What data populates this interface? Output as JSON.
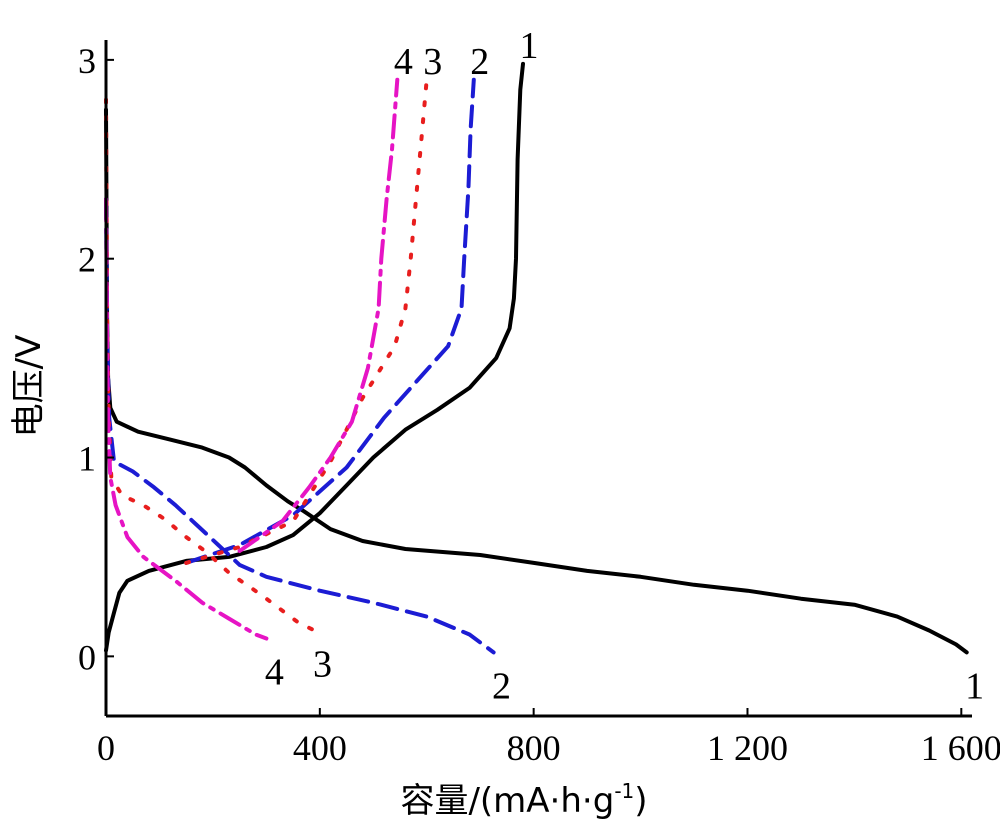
{
  "chart_data": {
    "type": "line",
    "title": "",
    "xlabel": "容量/(mA·h·g",
    "xlabel_sup": "-1",
    "xlabel_close": ")",
    "ylabel": "电压/V",
    "xlim": [
      0,
      1620
    ],
    "ylim": [
      -0.3,
      3.1
    ],
    "xticks": [
      {
        "value": 0,
        "label": "0"
      },
      {
        "value": 400,
        "label": "400"
      },
      {
        "value": 800,
        "label": "800"
      },
      {
        "value": 1200,
        "label": "1 200"
      },
      {
        "value": 1600,
        "label": "1 600"
      }
    ],
    "yticks": [
      {
        "value": 0,
        "label": "0"
      },
      {
        "value": 1,
        "label": "1"
      },
      {
        "value": 2,
        "label": "2"
      },
      {
        "value": 3,
        "label": "3"
      }
    ],
    "grid": false,
    "series": [
      {
        "label": "1",
        "color": "#000000",
        "dash": "none",
        "discharge": [
          [
            0,
            2.75
          ],
          [
            2,
            1.7
          ],
          [
            4,
            1.4
          ],
          [
            8,
            1.25
          ],
          [
            20,
            1.18
          ],
          [
            60,
            1.13
          ],
          [
            120,
            1.09
          ],
          [
            180,
            1.05
          ],
          [
            230,
            1.0
          ],
          [
            260,
            0.95
          ],
          [
            300,
            0.86
          ],
          [
            340,
            0.78
          ],
          [
            370,
            0.73
          ],
          [
            420,
            0.64
          ],
          [
            480,
            0.58
          ],
          [
            560,
            0.54
          ],
          [
            700,
            0.51
          ],
          [
            800,
            0.47
          ],
          [
            900,
            0.43
          ],
          [
            1000,
            0.4
          ],
          [
            1100,
            0.36
          ],
          [
            1200,
            0.33
          ],
          [
            1300,
            0.29
          ],
          [
            1400,
            0.26
          ],
          [
            1480,
            0.2
          ],
          [
            1540,
            0.13
          ],
          [
            1590,
            0.06
          ],
          [
            1610,
            0.02
          ]
        ],
        "charge": [
          [
            0,
            0.03
          ],
          [
            5,
            0.12
          ],
          [
            15,
            0.22
          ],
          [
            25,
            0.32
          ],
          [
            40,
            0.38
          ],
          [
            80,
            0.43
          ],
          [
            150,
            0.48
          ],
          [
            230,
            0.5
          ],
          [
            300,
            0.55
          ],
          [
            350,
            0.61
          ],
          [
            400,
            0.72
          ],
          [
            450,
            0.86
          ],
          [
            500,
            1.0
          ],
          [
            560,
            1.14
          ],
          [
            620,
            1.24
          ],
          [
            680,
            1.35
          ],
          [
            730,
            1.5
          ],
          [
            755,
            1.65
          ],
          [
            763,
            1.8
          ],
          [
            767,
            2.0
          ],
          [
            770,
            2.5
          ],
          [
            775,
            2.85
          ],
          [
            780,
            2.98
          ]
        ]
      },
      {
        "label": "2",
        "color": "#1c1cd4",
        "dash": "20 10",
        "discharge": [
          [
            0,
            2.3
          ],
          [
            2,
            1.6
          ],
          [
            6,
            1.2
          ],
          [
            15,
            0.98
          ],
          [
            50,
            0.93
          ],
          [
            90,
            0.85
          ],
          [
            130,
            0.76
          ],
          [
            170,
            0.66
          ],
          [
            210,
            0.56
          ],
          [
            250,
            0.46
          ],
          [
            300,
            0.4
          ],
          [
            400,
            0.33
          ],
          [
            500,
            0.27
          ],
          [
            600,
            0.2
          ],
          [
            680,
            0.11
          ],
          [
            725,
            0.02
          ]
        ],
        "charge": [
          [
            150,
            0.47
          ],
          [
            250,
            0.56
          ],
          [
            350,
            0.71
          ],
          [
            450,
            0.95
          ],
          [
            520,
            1.2
          ],
          [
            580,
            1.38
          ],
          [
            640,
            1.56
          ],
          [
            665,
            1.75
          ],
          [
            670,
            2.0
          ],
          [
            678,
            2.35
          ],
          [
            682,
            2.65
          ],
          [
            688,
            2.9
          ]
        ]
      },
      {
        "label": "3",
        "color": "#e81e1e",
        "dash": "3 14",
        "discharge": [
          [
            0,
            2.8
          ],
          [
            2,
            1.7
          ],
          [
            5,
            1.2
          ],
          [
            10,
            0.9
          ],
          [
            30,
            0.81
          ],
          [
            70,
            0.76
          ],
          [
            110,
            0.69
          ],
          [
            150,
            0.6
          ],
          [
            190,
            0.52
          ],
          [
            230,
            0.42
          ],
          [
            290,
            0.31
          ],
          [
            360,
            0.17
          ],
          [
            390,
            0.13
          ]
        ],
        "charge": [
          [
            150,
            0.47
          ],
          [
            250,
            0.55
          ],
          [
            350,
            0.68
          ],
          [
            420,
            0.98
          ],
          [
            480,
            1.3
          ],
          [
            540,
            1.56
          ],
          [
            560,
            1.75
          ],
          [
            570,
            2.0
          ],
          [
            580,
            2.3
          ],
          [
            590,
            2.6
          ],
          [
            600,
            2.9
          ]
        ]
      },
      {
        "label": "4",
        "color": "#e614c4",
        "dash": "22 8 4 8",
        "discharge": [
          [
            0,
            2.3
          ],
          [
            2,
            1.6
          ],
          [
            4,
            1.2
          ],
          [
            8,
            0.9
          ],
          [
            18,
            0.76
          ],
          [
            40,
            0.6
          ],
          [
            70,
            0.5
          ],
          [
            100,
            0.44
          ],
          [
            130,
            0.38
          ],
          [
            180,
            0.27
          ],
          [
            230,
            0.19
          ],
          [
            280,
            0.11
          ],
          [
            300,
            0.09
          ]
        ],
        "charge": [
          [
            250,
            0.53
          ],
          [
            330,
            0.68
          ],
          [
            380,
            0.85
          ],
          [
            420,
            1.0
          ],
          [
            460,
            1.18
          ],
          [
            490,
            1.45
          ],
          [
            510,
            1.75
          ],
          [
            515,
            2.0
          ],
          [
            525,
            2.3
          ],
          [
            535,
            2.55
          ],
          [
            545,
            2.9
          ]
        ]
      }
    ],
    "annotations": {
      "top": [
        "4",
        "3",
        "2",
        "1"
      ],
      "bottom": [
        "4",
        "3",
        "2",
        "1"
      ]
    }
  }
}
